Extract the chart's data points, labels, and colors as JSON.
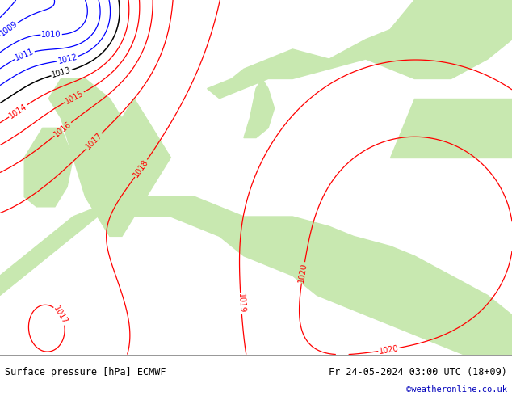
{
  "title_left": "Surface pressure [hPa] ECMWF",
  "title_right": "Fr 24-05-2024 03:00 UTC (18+09)",
  "credit": "©weatheronline.co.uk",
  "credit_color": "#0000bb",
  "map_bg": "#e0e0e0",
  "land_color": "#c8e8b0",
  "bottom_bar_color": "#f0f0f0",
  "text_color": "#000000",
  "red": "#ff0000",
  "black": "#000000",
  "blue": "#0000ff",
  "figsize": [
    6.34,
    4.9
  ],
  "dpi": 100
}
